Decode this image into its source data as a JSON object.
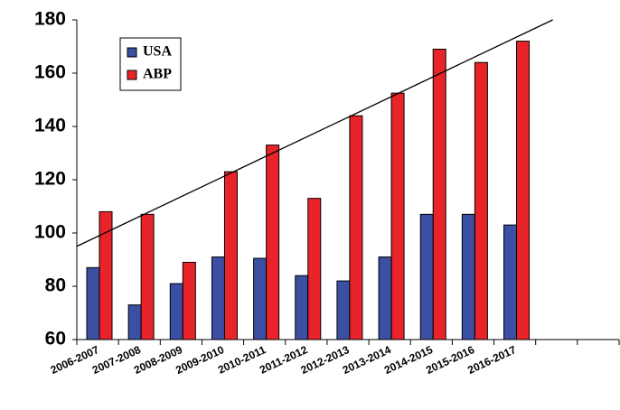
{
  "chart_data": {
    "type": "bar",
    "categories": [
      "2006-2007",
      "2007-2008",
      "2008-2009",
      "2009-2010",
      "2010-2011",
      "2011-2012",
      "2012-2013",
      "2013-2014",
      "2014-2015",
      "2015-2016",
      "2016-2017",
      null,
      null
    ],
    "series": [
      {
        "name": "USA",
        "color": "#3b4fa3",
        "values": [
          87,
          73,
          81,
          91,
          90.5,
          84,
          82,
          91,
          107,
          107,
          103,
          null,
          null
        ]
      },
      {
        "name": "ABP",
        "color": "#e8242a",
        "values": [
          108,
          107,
          89,
          123,
          133,
          113,
          144,
          152.5,
          169,
          164,
          172,
          null,
          null
        ]
      }
    ],
    "ylim": [
      60,
      180
    ],
    "yticks": [
      60,
      80,
      100,
      120,
      140,
      160,
      180
    ],
    "trendline": {
      "start": 95,
      "slope": 7.45,
      "color": "#000000"
    },
    "legend": "upper-left",
    "grid": false
  }
}
